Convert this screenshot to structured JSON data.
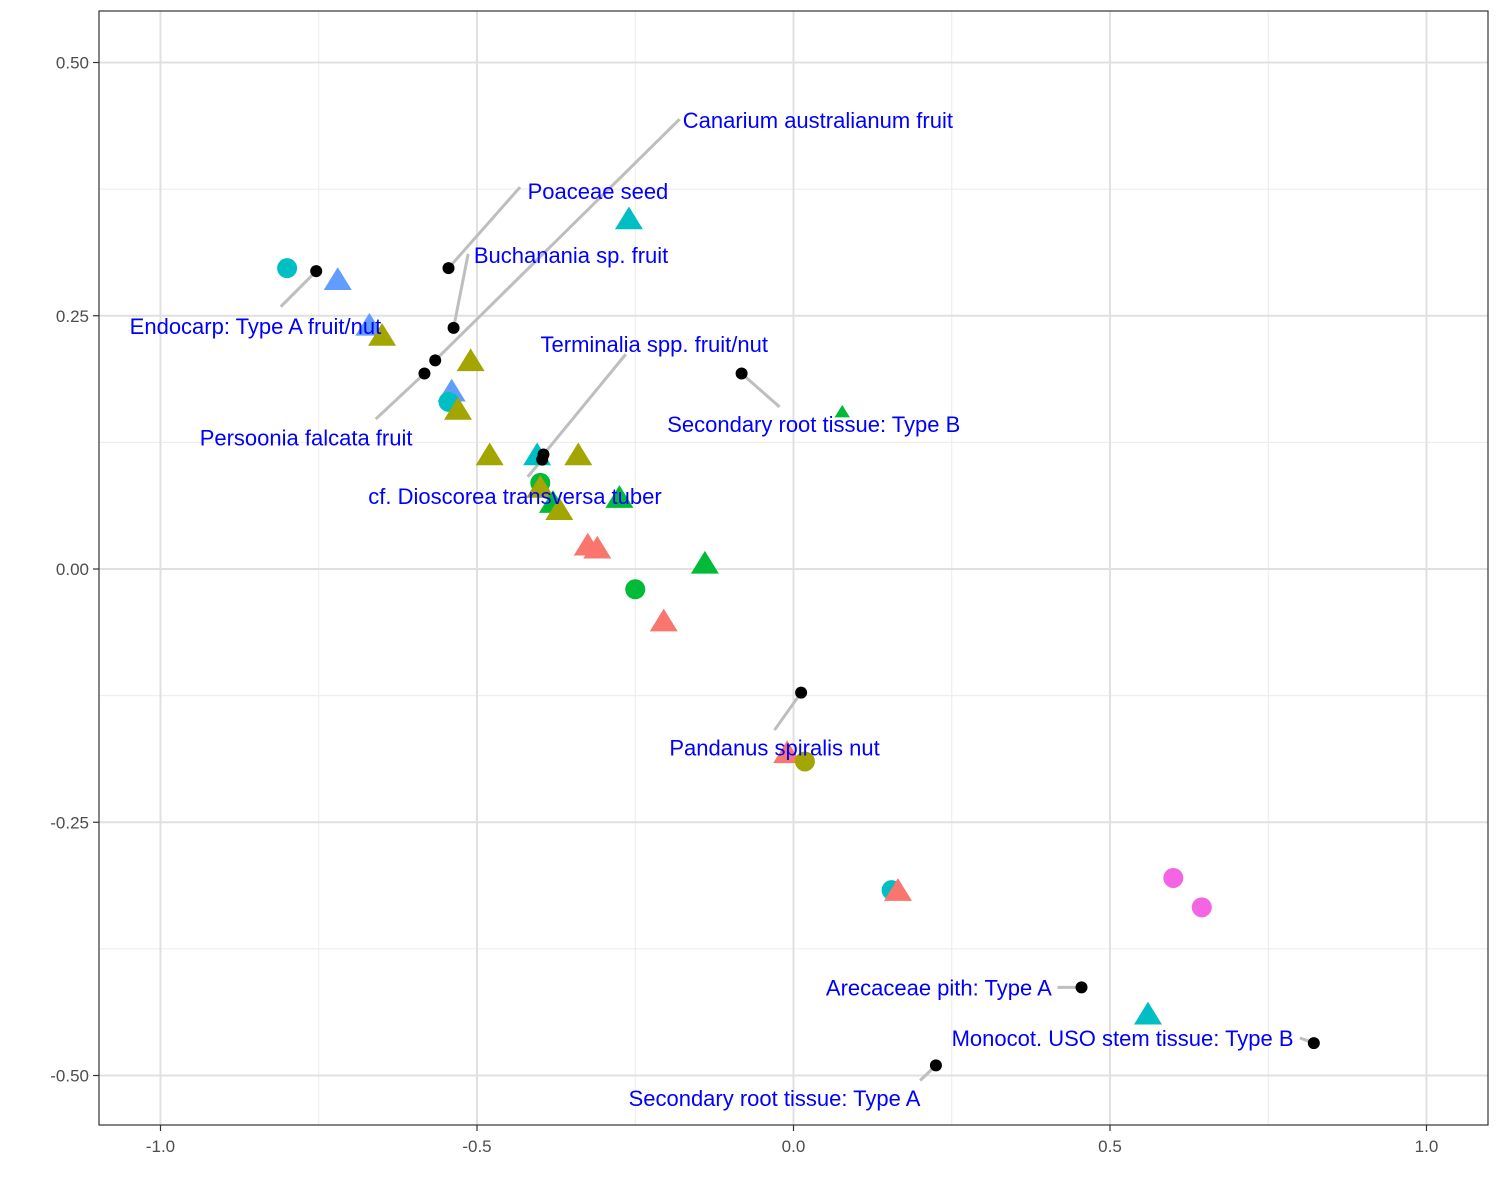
{
  "chart_data": {
    "type": "scatter",
    "title": "",
    "xlabel": "",
    "ylabel": "",
    "xlim": [
      -1.1,
      1.1
    ],
    "ylim": [
      -0.55,
      0.55
    ],
    "x_ticks": [
      -1.0,
      -0.5,
      0.0,
      0.5,
      1.0
    ],
    "x_tick_labels": [
      "-1.0",
      "-0.5",
      "0.0",
      "0.5",
      "1.0"
    ],
    "y_ticks": [
      -0.5,
      -0.25,
      0.0,
      0.25,
      0.5
    ],
    "y_tick_labels": [
      "-0.50",
      "-0.25",
      "0.00",
      "0.25",
      "0.50"
    ],
    "grid": true,
    "legend": "none",
    "colors": {
      "red": "#F8766D",
      "olive": "#A3A500",
      "green": "#00BA38",
      "teal": "#00BFC4",
      "blue": "#619CFF",
      "magenta": "#F564E3",
      "reference": "#000000",
      "label_text": "#0000FF",
      "leader_line": "#BEBEBE"
    },
    "sample_points": [
      {
        "x": -0.8,
        "y": 0.297,
        "shape": "circle",
        "color": "teal"
      },
      {
        "x": -0.72,
        "y": 0.285,
        "shape": "triangle",
        "color": "blue"
      },
      {
        "x": -0.67,
        "y": 0.24,
        "shape": "triangle",
        "color": "blue"
      },
      {
        "x": -0.65,
        "y": 0.23,
        "shape": "triangle",
        "color": "olive"
      },
      {
        "x": -0.51,
        "y": 0.205,
        "shape": "triangle",
        "color": "olive"
      },
      {
        "x": -0.54,
        "y": 0.175,
        "shape": "triangle",
        "color": "blue"
      },
      {
        "x": -0.545,
        "y": 0.165,
        "shape": "circle",
        "color": "teal"
      },
      {
        "x": -0.53,
        "y": 0.157,
        "shape": "triangle",
        "color": "olive"
      },
      {
        "x": -0.26,
        "y": 0.345,
        "shape": "triangle",
        "color": "teal"
      },
      {
        "x": 0.077,
        "y": 0.155,
        "shape": "triangle",
        "color": "green",
        "small": true
      },
      {
        "x": -0.48,
        "y": 0.112,
        "shape": "triangle",
        "color": "olive"
      },
      {
        "x": -0.405,
        "y": 0.112,
        "shape": "triangle",
        "color": "teal"
      },
      {
        "x": -0.34,
        "y": 0.112,
        "shape": "triangle",
        "color": "olive"
      },
      {
        "x": -0.4,
        "y": 0.085,
        "shape": "circle",
        "color": "green"
      },
      {
        "x": -0.4,
        "y": 0.08,
        "shape": "triangle",
        "color": "olive"
      },
      {
        "x": -0.275,
        "y": 0.07,
        "shape": "triangle",
        "color": "green"
      },
      {
        "x": -0.38,
        "y": 0.065,
        "shape": "triangle",
        "color": "green"
      },
      {
        "x": -0.37,
        "y": 0.058,
        "shape": "triangle",
        "color": "olive"
      },
      {
        "x": -0.325,
        "y": 0.023,
        "shape": "triangle",
        "color": "red"
      },
      {
        "x": -0.31,
        "y": 0.02,
        "shape": "triangle",
        "color": "red"
      },
      {
        "x": -0.14,
        "y": 0.005,
        "shape": "triangle",
        "color": "green"
      },
      {
        "x": -0.25,
        "y": -0.02,
        "shape": "circle",
        "color": "green"
      },
      {
        "x": -0.205,
        "y": -0.052,
        "shape": "triangle",
        "color": "red"
      },
      {
        "x": -0.01,
        "y": -0.182,
        "shape": "triangle",
        "color": "red"
      },
      {
        "x": 0.018,
        "y": -0.19,
        "shape": "circle",
        "color": "olive"
      },
      {
        "x": 0.155,
        "y": -0.317,
        "shape": "circle",
        "color": "teal"
      },
      {
        "x": 0.165,
        "y": -0.318,
        "shape": "triangle",
        "color": "red"
      },
      {
        "x": 0.6,
        "y": -0.305,
        "shape": "circle",
        "color": "magenta"
      },
      {
        "x": 0.645,
        "y": -0.334,
        "shape": "circle",
        "color": "magenta"
      },
      {
        "x": 0.56,
        "y": -0.44,
        "shape": "triangle",
        "color": "teal"
      }
    ],
    "reference_points": [
      {
        "label": "Canarium australianum fruit",
        "x": -0.566,
        "y": 0.206,
        "lx": -0.175,
        "ly": 0.443,
        "anchor": "start",
        "ex": -0.18,
        "ey": 0.444
      },
      {
        "label": "Poaceae seed",
        "x": -0.545,
        "y": 0.297,
        "lx": -0.42,
        "ly": 0.373,
        "anchor": "start",
        "ex": -0.432,
        "ey": 0.377
      },
      {
        "label": "Buchanania sp. fruit",
        "x": -0.537,
        "y": 0.238,
        "lx": -0.505,
        "ly": 0.31,
        "anchor": "start",
        "ex": -0.514,
        "ey": 0.311
      },
      {
        "label": "Endocarp: Type A fruit/nut",
        "x": -0.754,
        "y": 0.294,
        "lx": -0.85,
        "ly": 0.24,
        "anchor": "middle",
        "ex": -0.81,
        "ey": 0.259
      },
      {
        "label": "Persoonia falcata fruit",
        "x": -0.583,
        "y": 0.193,
        "lx": -0.77,
        "ly": 0.13,
        "anchor": "middle",
        "ex": -0.66,
        "ey": 0.148
      },
      {
        "label": "Terminalia spp. fruit/nut",
        "x": -0.395,
        "y": 0.113,
        "lx": -0.22,
        "ly": 0.222,
        "anchor": "middle",
        "ex": -0.265,
        "ey": 0.212
      },
      {
        "label": "cf. Dioscorea transversa tuber",
        "x": -0.397,
        "y": 0.108,
        "lx": -0.44,
        "ly": 0.072,
        "anchor": "middle",
        "ex": -0.42,
        "ey": 0.091
      },
      {
        "label": "Secondary root tissue: Type B",
        "x": -0.082,
        "y": 0.193,
        "lx": 0.032,
        "ly": 0.143,
        "anchor": "middle",
        "ex": -0.022,
        "ey": 0.16
      },
      {
        "label": "Pandanus spiralis nut",
        "x": 0.012,
        "y": -0.122,
        "lx": -0.03,
        "ly": -0.176,
        "anchor": "middle",
        "ex": -0.03,
        "ey": -0.159
      },
      {
        "label": "Arecaceae pith: Type A",
        "x": 0.455,
        "y": -0.413,
        "lx": 0.408,
        "ly": -0.413,
        "anchor": "end",
        "ex": 0.417,
        "ey": -0.413
      },
      {
        "label": "Monocot. USO stem tissue: Type B",
        "x": 0.822,
        "y": -0.468,
        "lx": 0.79,
        "ly": -0.463,
        "anchor": "end",
        "ex": 0.8,
        "ey": -0.463
      },
      {
        "label": "Secondary root tissue: Type A",
        "x": 0.225,
        "y": -0.49,
        "lx": -0.03,
        "ly": -0.522,
        "anchor": "middle",
        "ex": 0.2,
        "ey": -0.505
      }
    ]
  }
}
